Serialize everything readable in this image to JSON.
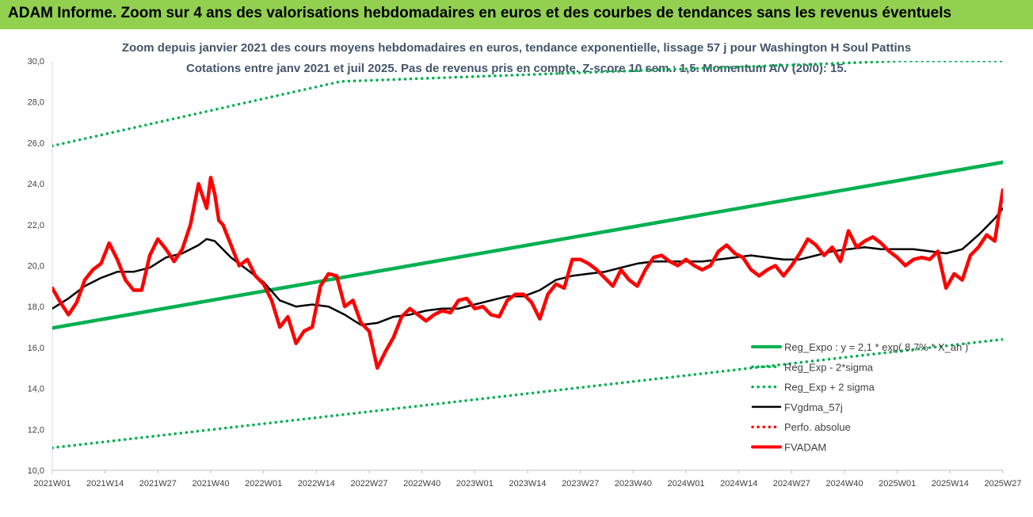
{
  "banner": "ADAM Informe. Zoom sur 4 ans des valorisations hebdomadaires en euros et des courbes de tendances sans les revenus éventuels",
  "chart_data": {
    "type": "line",
    "title": "Zoom depuis janvier 2021 des cours moyens hebdomadaires en euros, tendance exponentielle, lissage 57 j pour Washington H Soul Pattins",
    "subtitle": "Cotations entre janv 2021 et juil 2025. Pas de revenus pris en compte. Z-score 10 sem.: 1,5. Momentum A/V (20/0): 15.",
    "xlabel": "",
    "ylabel": "",
    "ylim": [
      10,
      30
    ],
    "xlim": [
      0,
      234
    ],
    "grid": false,
    "legend_position": "right",
    "y_ticks": [
      "10,0",
      "12,0",
      "14,0",
      "16,0",
      "18,0",
      "20,0",
      "22,0",
      "24,0",
      "26,0",
      "28,0",
      "30,0"
    ],
    "x_tick_labels": [
      "2021W01",
      "2021W14",
      "2021W27",
      "2021W40",
      "2022W01",
      "2022W14",
      "2022W27",
      "2022W40",
      "2023W01",
      "2023W14",
      "2023W27",
      "2023W40",
      "2024W01",
      "2024W14",
      "2024W27",
      "2024W40",
      "2025W01",
      "2025W14",
      "2025W27"
    ],
    "series": [
      {
        "name": "Reg_Expo : y = 2,1 * exp( 8,7% * X_an )",
        "color": "#00b050",
        "style": "solid-thick",
        "x": [
          0,
          234
        ],
        "y": [
          16.95,
          25.05
        ]
      },
      {
        "name": "Reg_Exp - 2*sigma",
        "color": "#00b050",
        "style": "dotted",
        "x": [
          0,
          234
        ],
        "y": [
          11.1,
          16.4
        ]
      },
      {
        "name": "Reg_Exp + 2 sigma",
        "color": "#00b050",
        "style": "dotted",
        "x": [
          0,
          71,
          209,
          234
        ],
        "y": [
          25.85,
          29.0,
          30.0,
          30.0
        ]
      },
      {
        "name": "FVgdma_57j",
        "color": "#000000",
        "style": "solid",
        "x": [
          0,
          4,
          8,
          12,
          16,
          20,
          24,
          28,
          32,
          36,
          38,
          40,
          44,
          48,
          52,
          56,
          60,
          64,
          68,
          72,
          76,
          80,
          84,
          88,
          92,
          96,
          100,
          104,
          108,
          112,
          116,
          120,
          124,
          128,
          132,
          136,
          140,
          144,
          148,
          152,
          156,
          160,
          164,
          168,
          172,
          176,
          180,
          184,
          188,
          192,
          196,
          200,
          204,
          208,
          212,
          216,
          220,
          224,
          228,
          232,
          234
        ],
        "y": [
          17.9,
          18.4,
          19.0,
          19.4,
          19.7,
          19.7,
          19.9,
          20.4,
          20.6,
          21.0,
          21.3,
          21.2,
          20.4,
          19.8,
          19.2,
          18.3,
          18.0,
          18.1,
          18.0,
          17.6,
          17.1,
          17.2,
          17.5,
          17.6,
          17.8,
          17.9,
          17.9,
          18.1,
          18.3,
          18.5,
          18.5,
          18.8,
          19.3,
          19.5,
          19.6,
          19.7,
          19.9,
          20.1,
          20.2,
          20.2,
          20.2,
          20.2,
          20.3,
          20.4,
          20.5,
          20.4,
          20.3,
          20.3,
          20.5,
          20.7,
          20.8,
          20.9,
          20.8,
          20.8,
          20.8,
          20.7,
          20.6,
          20.8,
          21.5,
          22.3,
          22.8
        ]
      },
      {
        "name": "Perfo. absolue",
        "color": "#ff0000",
        "style": "dotted",
        "x": [],
        "y": []
      },
      {
        "name": "FVADAM",
        "color": "#ff0000",
        "style": "solid-thick",
        "x": [
          0,
          2,
          4,
          6,
          8,
          10,
          12,
          14,
          16,
          18,
          20,
          22,
          24,
          26,
          28,
          30,
          32,
          34,
          36,
          38,
          39,
          40,
          41,
          42,
          44,
          46,
          48,
          50,
          52,
          54,
          56,
          58,
          60,
          62,
          64,
          66,
          68,
          70,
          72,
          74,
          76,
          78,
          80,
          82,
          84,
          86,
          88,
          90,
          92,
          94,
          96,
          98,
          100,
          102,
          104,
          106,
          108,
          110,
          112,
          114,
          116,
          118,
          120,
          122,
          124,
          126,
          128,
          130,
          132,
          134,
          136,
          138,
          140,
          142,
          144,
          146,
          148,
          150,
          152,
          154,
          156,
          158,
          160,
          162,
          164,
          166,
          168,
          170,
          172,
          174,
          176,
          178,
          180,
          182,
          184,
          186,
          188,
          190,
          192,
          194,
          196,
          198,
          200,
          202,
          204,
          206,
          208,
          210,
          212,
          214,
          216,
          218,
          220,
          222,
          224,
          226,
          228,
          230,
          232,
          234
        ],
        "y": [
          18.9,
          18.2,
          17.6,
          18.2,
          19.3,
          19.8,
          20.1,
          21.1,
          20.3,
          19.3,
          18.8,
          18.8,
          20.5,
          21.3,
          20.8,
          20.2,
          20.8,
          22.0,
          24.0,
          22.8,
          24.3,
          23.5,
          22.2,
          22.0,
          21.0,
          20.0,
          20.3,
          19.5,
          19.1,
          18.3,
          17.0,
          17.5,
          16.2,
          16.8,
          17.0,
          19.0,
          19.6,
          19.5,
          18.0,
          18.3,
          17.2,
          16.8,
          15.0,
          15.8,
          16.5,
          17.5,
          17.9,
          17.6,
          17.3,
          17.6,
          17.8,
          17.7,
          18.3,
          18.4,
          17.9,
          18.0,
          17.6,
          17.5,
          18.3,
          18.6,
          18.6,
          18.2,
          17.4,
          18.6,
          19.1,
          18.9,
          20.3,
          20.3,
          20.1,
          19.8,
          19.4,
          19.0,
          19.8,
          19.3,
          19.0,
          19.8,
          20.4,
          20.5,
          20.2,
          20.0,
          20.3,
          20.0,
          19.8,
          20.0,
          20.7,
          21.0,
          20.6,
          20.4,
          19.8,
          19.5,
          19.8,
          20.0,
          19.5,
          20.0,
          20.6,
          21.3,
          21.0,
          20.5,
          20.9,
          20.2,
          21.7,
          20.9,
          21.2,
          21.4,
          21.1,
          20.7,
          20.4,
          20.0,
          20.3,
          20.4,
          20.3,
          20.7,
          18.9,
          19.6,
          19.3,
          20.5,
          20.9,
          21.5,
          21.2,
          23.7
        ]
      }
    ]
  }
}
